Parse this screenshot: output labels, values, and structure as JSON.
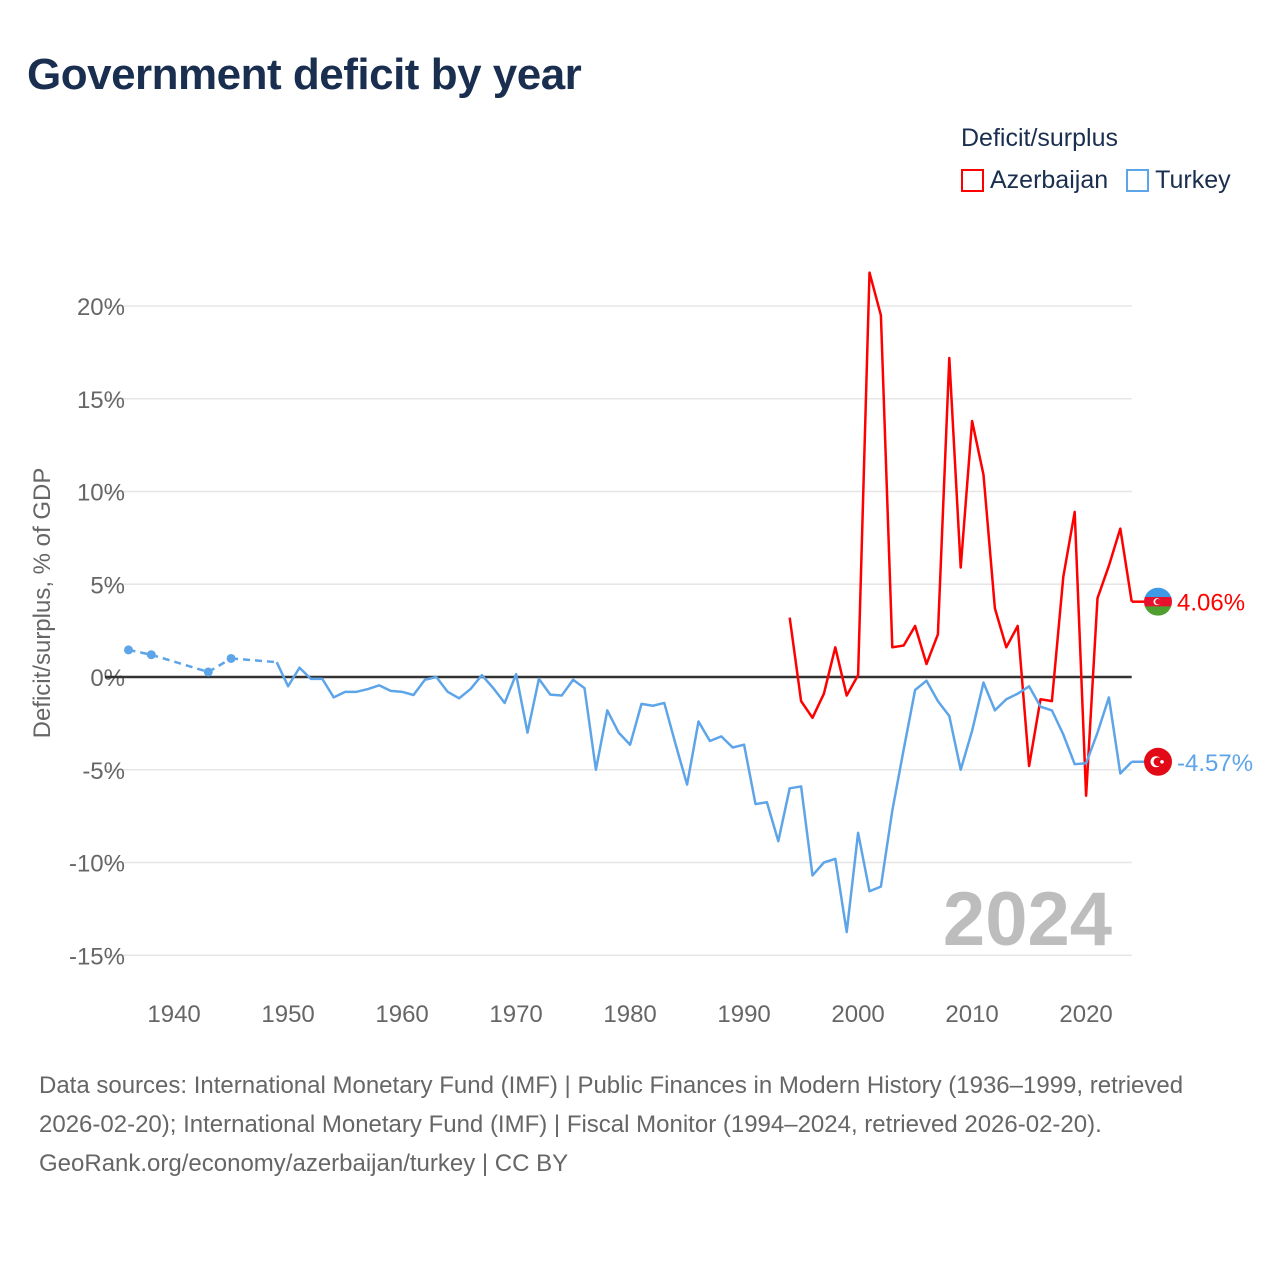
{
  "title": "Government deficit by year",
  "legend_title": "Deficit/surplus",
  "footer": {
    "sources": "Data sources: International Monetary Fund (IMF) | Public Finances in Modern History (1936–1999, retrieved 2026-02-20); International Monetary Fund (IMF) | Fiscal Monitor (1994–2024, retrieved 2026-02-20).",
    "credit": "GeoRank.org/economy/azerbaijan/turkey | CC BY"
  },
  "chart_data": {
    "type": "line",
    "title": "Government deficit by year",
    "ylabel": "Deficit/surplus, % of GDP",
    "xlabel": "",
    "xlim": [
      1936,
      2024
    ],
    "ylim": [
      -17,
      23
    ],
    "yticks": [
      20,
      15,
      10,
      5,
      0,
      -5,
      -10,
      -15
    ],
    "ytick_labels": [
      "20%",
      "15%",
      "10%",
      "5%",
      "0%",
      "-5%",
      "-10%",
      "-15%"
    ],
    "xticks": [
      1940,
      1950,
      1960,
      1970,
      1980,
      1990,
      2000,
      2010,
      2020
    ],
    "year_label": "2024",
    "grid": true,
    "legend_position": "top-right",
    "series": [
      {
        "name": "Azerbaijan",
        "color": "#ff0000",
        "end_label": "4.06%",
        "flag": "azerbaijan-flag",
        "x": [
          1994,
          1995,
          1996,
          1997,
          1998,
          1999,
          2000,
          2001,
          2002,
          2003,
          2004,
          2005,
          2006,
          2007,
          2008,
          2009,
          2010,
          2011,
          2012,
          2013,
          2014,
          2015,
          2016,
          2017,
          2018,
          2019,
          2020,
          2021,
          2022,
          2023,
          2024
        ],
        "y": [
          3.2,
          -1.3,
          -2.2,
          -0.9,
          1.6,
          -1.0,
          0.1,
          21.8,
          19.5,
          1.6,
          1.7,
          2.75,
          0.7,
          2.3,
          17.2,
          5.9,
          13.8,
          10.9,
          3.7,
          1.6,
          2.75,
          -4.8,
          -1.2,
          -1.3,
          5.4,
          8.9,
          -6.4,
          4.25,
          6.0,
          8.0,
          4.06
        ]
      },
      {
        "name": "Turkey",
        "color": "#5da5e8",
        "end_label": "-4.57%",
        "flag": "turkey-flag",
        "x": [
          1936,
          1938,
          1943,
          1945,
          1949,
          1950,
          1951,
          1952,
          1953,
          1954,
          1955,
          1956,
          1957,
          1958,
          1959,
          1960,
          1961,
          1962,
          1963,
          1964,
          1965,
          1966,
          1967,
          1968,
          1969,
          1970,
          1971,
          1972,
          1973,
          1974,
          1975,
          1976,
          1977,
          1978,
          1979,
          1980,
          1981,
          1982,
          1983,
          1984,
          1985,
          1986,
          1987,
          1988,
          1989,
          1990,
          1991,
          1992,
          1993,
          1994,
          1995,
          1996,
          1997,
          1998,
          1999,
          2000,
          2001,
          2002,
          2003,
          2004,
          2005,
          2006,
          2007,
          2008,
          2009,
          2010,
          2011,
          2012,
          2013,
          2014,
          2015,
          2016,
          2017,
          2018,
          2019,
          2020,
          2021,
          2022,
          2023,
          2024
        ],
        "y": [
          1.46,
          1.2,
          0.27,
          1.0,
          0.8,
          -0.5,
          0.5,
          -0.1,
          -0.1,
          -1.1,
          -0.8,
          -0.8,
          -0.65,
          -0.45,
          -0.75,
          -0.8,
          -0.97,
          -0.15,
          0,
          -0.8,
          -1.15,
          -0.65,
          0.1,
          -0.6,
          -1.4,
          0.15,
          -3.0,
          -0.1,
          -0.95,
          -1.0,
          -0.15,
          -0.6,
          -5.0,
          -1.8,
          -3.0,
          -3.65,
          -1.45,
          -1.55,
          -1.4,
          -3.65,
          -5.8,
          -2.4,
          -3.45,
          -3.2,
          -3.8,
          -3.65,
          -6.85,
          -6.75,
          -8.85,
          -6.0,
          -5.9,
          -10.7,
          -10.0,
          -9.8,
          -13.75,
          -8.4,
          -11.55,
          -11.3,
          -7.2,
          -3.9,
          -0.7,
          -0.2,
          -1.3,
          -2.1,
          -5.0,
          -2.9,
          -0.3,
          -1.8,
          -1.2,
          -0.9,
          -0.5,
          -1.6,
          -1.8,
          -3.1,
          -4.7,
          -4.65,
          -3.0,
          -1.1,
          -5.2,
          -4.57
        ]
      }
    ]
  }
}
